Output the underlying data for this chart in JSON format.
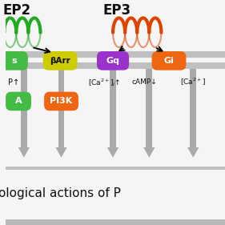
{
  "bg_color": "#f5f5f5",
  "white_bg": "#f5f5f5",
  "membrane_color": "#b8b8b8",
  "title_text": "ological actions of P",
  "ep2_label": "EP2",
  "ep3_label": "EP3",
  "ep2_coil_color": "#22aa22",
  "ep3_coil_color": "#dd4400",
  "barr_color": "#ddcc00",
  "barr_label": "βArr",
  "gq_color": "#9933cc",
  "gq_label": "Gq",
  "gi_color": "#ee6611",
  "gi_label": "Gi",
  "gs_color": "#44bb44",
  "gs_label": "s",
  "pka_color": "#44bb44",
  "pka_label": "A",
  "pi3k_color": "#ee6611",
  "pi3k_label": "PI3K",
  "arrow_color": "#999999",
  "text_color": "#111111",
  "ca2_label": "[Ca$^{2+}$]$_i$↑",
  "camp_label": "cAMP↓",
  "ca2_right_label": "[Ca$^{2+}$]",
  "p_up_label": "P↑"
}
